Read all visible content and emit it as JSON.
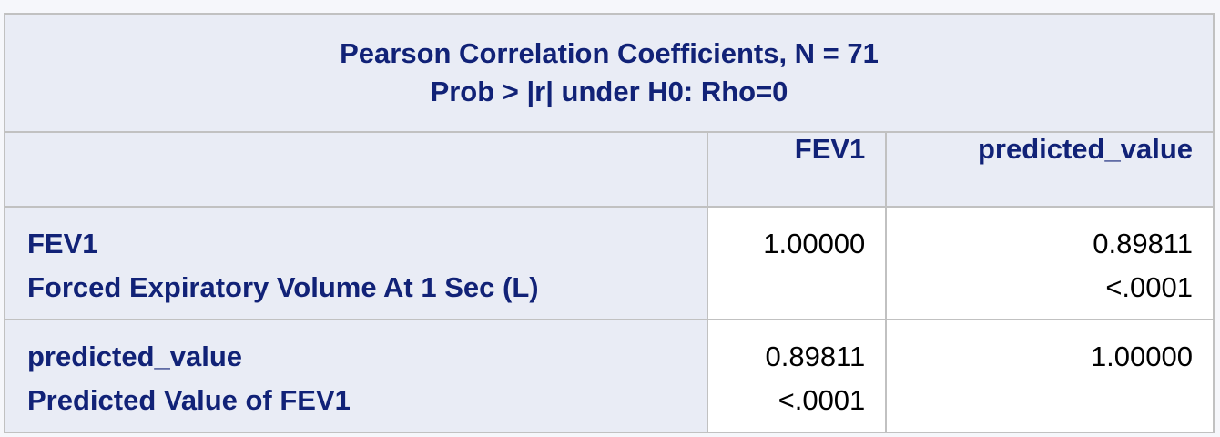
{
  "table": {
    "caption": {
      "line1": "Pearson Correlation Coefficients, N = 71",
      "line2": "Prob > |r| under H0: Rho=0"
    },
    "columns": [
      "FEV1",
      "predicted_value"
    ],
    "rows": [
      {
        "name": "FEV1",
        "label": "Forced Expiratory Volume At 1 Sec (L)",
        "cells": [
          {
            "r": "1.00000",
            "p": ""
          },
          {
            "r": "0.89811",
            "p": "<.0001"
          }
        ]
      },
      {
        "name": "predicted_value",
        "label": "Predicted Value of FEV1",
        "cells": [
          {
            "r": "0.89811",
            "p": "<.0001"
          },
          {
            "r": "1.00000",
            "p": ""
          }
        ]
      }
    ]
  },
  "colors": {
    "header_background": "#e9ecf5",
    "header_text": "#112277",
    "grid_lines": "#c1c1c1",
    "page_background": "#f6f7fb"
  }
}
